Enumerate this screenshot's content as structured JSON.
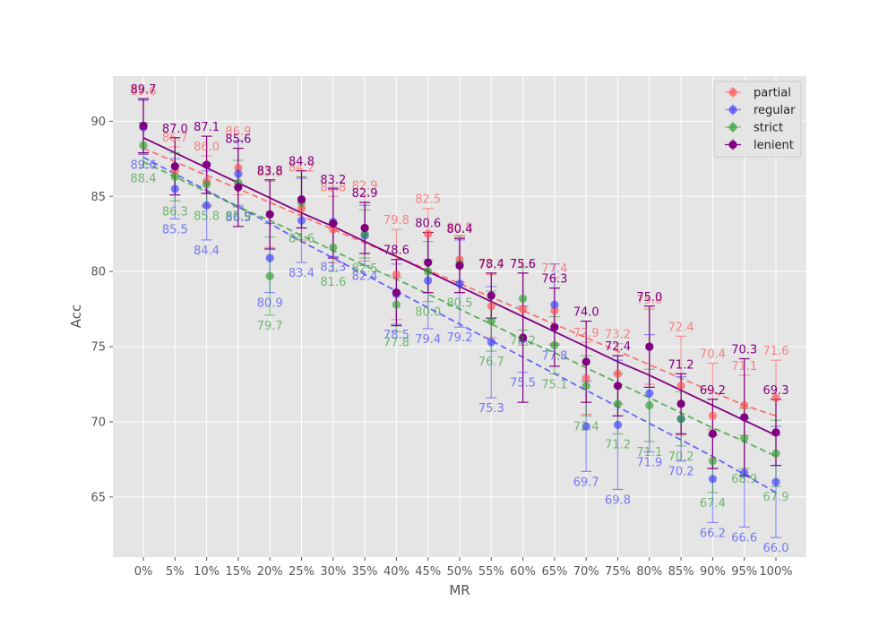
{
  "chart_data": {
    "type": "scatter",
    "xlabel": "MR",
    "ylabel": "Acc",
    "categories": [
      "0%",
      "5%",
      "10%",
      "15%",
      "20%",
      "25%",
      "30%",
      "35%",
      "40%",
      "45%",
      "50%",
      "55%",
      "60%",
      "65%",
      "70%",
      "75%",
      "80%",
      "85%",
      "90%",
      "95%",
      "100%"
    ],
    "ylim": [
      61,
      93
    ],
    "yticks": [
      65,
      70,
      75,
      80,
      85,
      90
    ],
    "grid": true,
    "legend_position": "top-right",
    "series": [
      {
        "name": "partial",
        "color": "#ff4d4d",
        "label_position": "above",
        "values": [
          89.6,
          86.7,
          86.0,
          86.9,
          83.8,
          84.2,
          82.8,
          82.9,
          79.8,
          82.5,
          80.8,
          77.7,
          77.5,
          77.4,
          72.9,
          73.2,
          75.0,
          72.4,
          70.4,
          71.1,
          71.6
        ],
        "errors": [
          1.8,
          1.6,
          1.7,
          1.8,
          2.2,
          2.1,
          2.2,
          2.2,
          3.0,
          1.7,
          1.5,
          2.1,
          2.4,
          2.2,
          2.4,
          2.0,
          2.5,
          3.3,
          3.5,
          2.0,
          2.5
        ],
        "trend": [
          88.2,
          87.3,
          86.4,
          85.5,
          84.6,
          83.7,
          82.8,
          81.9,
          81.0,
          80.1,
          79.2,
          78.3,
          77.4,
          76.5,
          75.6,
          74.7,
          73.8,
          72.9,
          72.0,
          71.1,
          70.4
        ]
      },
      {
        "name": "regular",
        "color": "#3b3bff",
        "label_position": "below",
        "values": [
          89.6,
          85.5,
          84.4,
          86.5,
          80.9,
          83.4,
          83.3,
          82.4,
          78.5,
          79.4,
          79.2,
          75.3,
          75.5,
          77.8,
          69.7,
          69.8,
          71.9,
          70.2,
          66.2,
          66.6,
          66.0
        ],
        "errors": [
          1.8,
          2.0,
          2.3,
          2.2,
          2.3,
          2.8,
          2.3,
          2.0,
          2.0,
          3.2,
          2.9,
          3.7,
          2.2,
          2.7,
          3.0,
          4.3,
          3.9,
          2.8,
          2.9,
          3.6,
          3.7
        ],
        "trend": [
          87.6,
          86.5,
          85.4,
          84.3,
          83.2,
          82.0,
          80.9,
          79.8,
          78.7,
          77.6,
          76.5,
          75.4,
          74.3,
          73.2,
          72.1,
          71.0,
          69.9,
          68.8,
          67.7,
          66.5,
          65.3
        ]
      },
      {
        "name": "strict",
        "color": "#2e9e2e",
        "label_position": "below",
        "values": [
          88.4,
          86.3,
          85.8,
          85.9,
          79.7,
          84.6,
          81.6,
          82.5,
          77.8,
          80.0,
          80.5,
          76.7,
          78.2,
          75.1,
          72.4,
          71.2,
          71.1,
          70.2,
          67.4,
          68.9,
          67.9
        ],
        "errors": [
          1.5,
          1.6,
          1.4,
          1.5,
          2.6,
          1.7,
          1.6,
          1.6,
          1.8,
          2.0,
          1.9,
          2.0,
          2.1,
          1.9,
          2.0,
          2.0,
          2.4,
          1.8,
          2.1,
          2.0,
          2.2
        ],
        "trend": [
          87.3,
          86.3,
          85.3,
          84.3,
          83.4,
          82.4,
          81.4,
          80.4,
          79.5,
          78.5,
          77.5,
          76.5,
          75.5,
          74.6,
          73.6,
          72.6,
          71.6,
          70.6,
          69.6,
          68.7,
          67.7
        ]
      },
      {
        "name": "lenient",
        "color": "#800080",
        "label_position": "above",
        "values": [
          89.7,
          87.0,
          87.1,
          85.6,
          83.8,
          84.8,
          83.2,
          82.9,
          78.6,
          80.6,
          80.4,
          78.4,
          75.6,
          76.3,
          74.0,
          72.4,
          75.0,
          71.2,
          69.2,
          70.3,
          69.3
        ],
        "errors": [
          1.8,
          1.9,
          1.9,
          2.6,
          2.3,
          1.9,
          2.3,
          1.7,
          2.2,
          2.0,
          1.8,
          1.5,
          4.3,
          2.6,
          2.7,
          2.0,
          2.7,
          2.0,
          2.3,
          3.9,
          2.2
        ],
        "trend": [
          88.9,
          87.9,
          86.9,
          85.9,
          84.9,
          83.9,
          83.0,
          82.0,
          81.0,
          80.0,
          79.0,
          78.0,
          77.0,
          76.0,
          75.0,
          74.0,
          73.1,
          72.1,
          71.1,
          70.1,
          69.1
        ]
      }
    ]
  }
}
